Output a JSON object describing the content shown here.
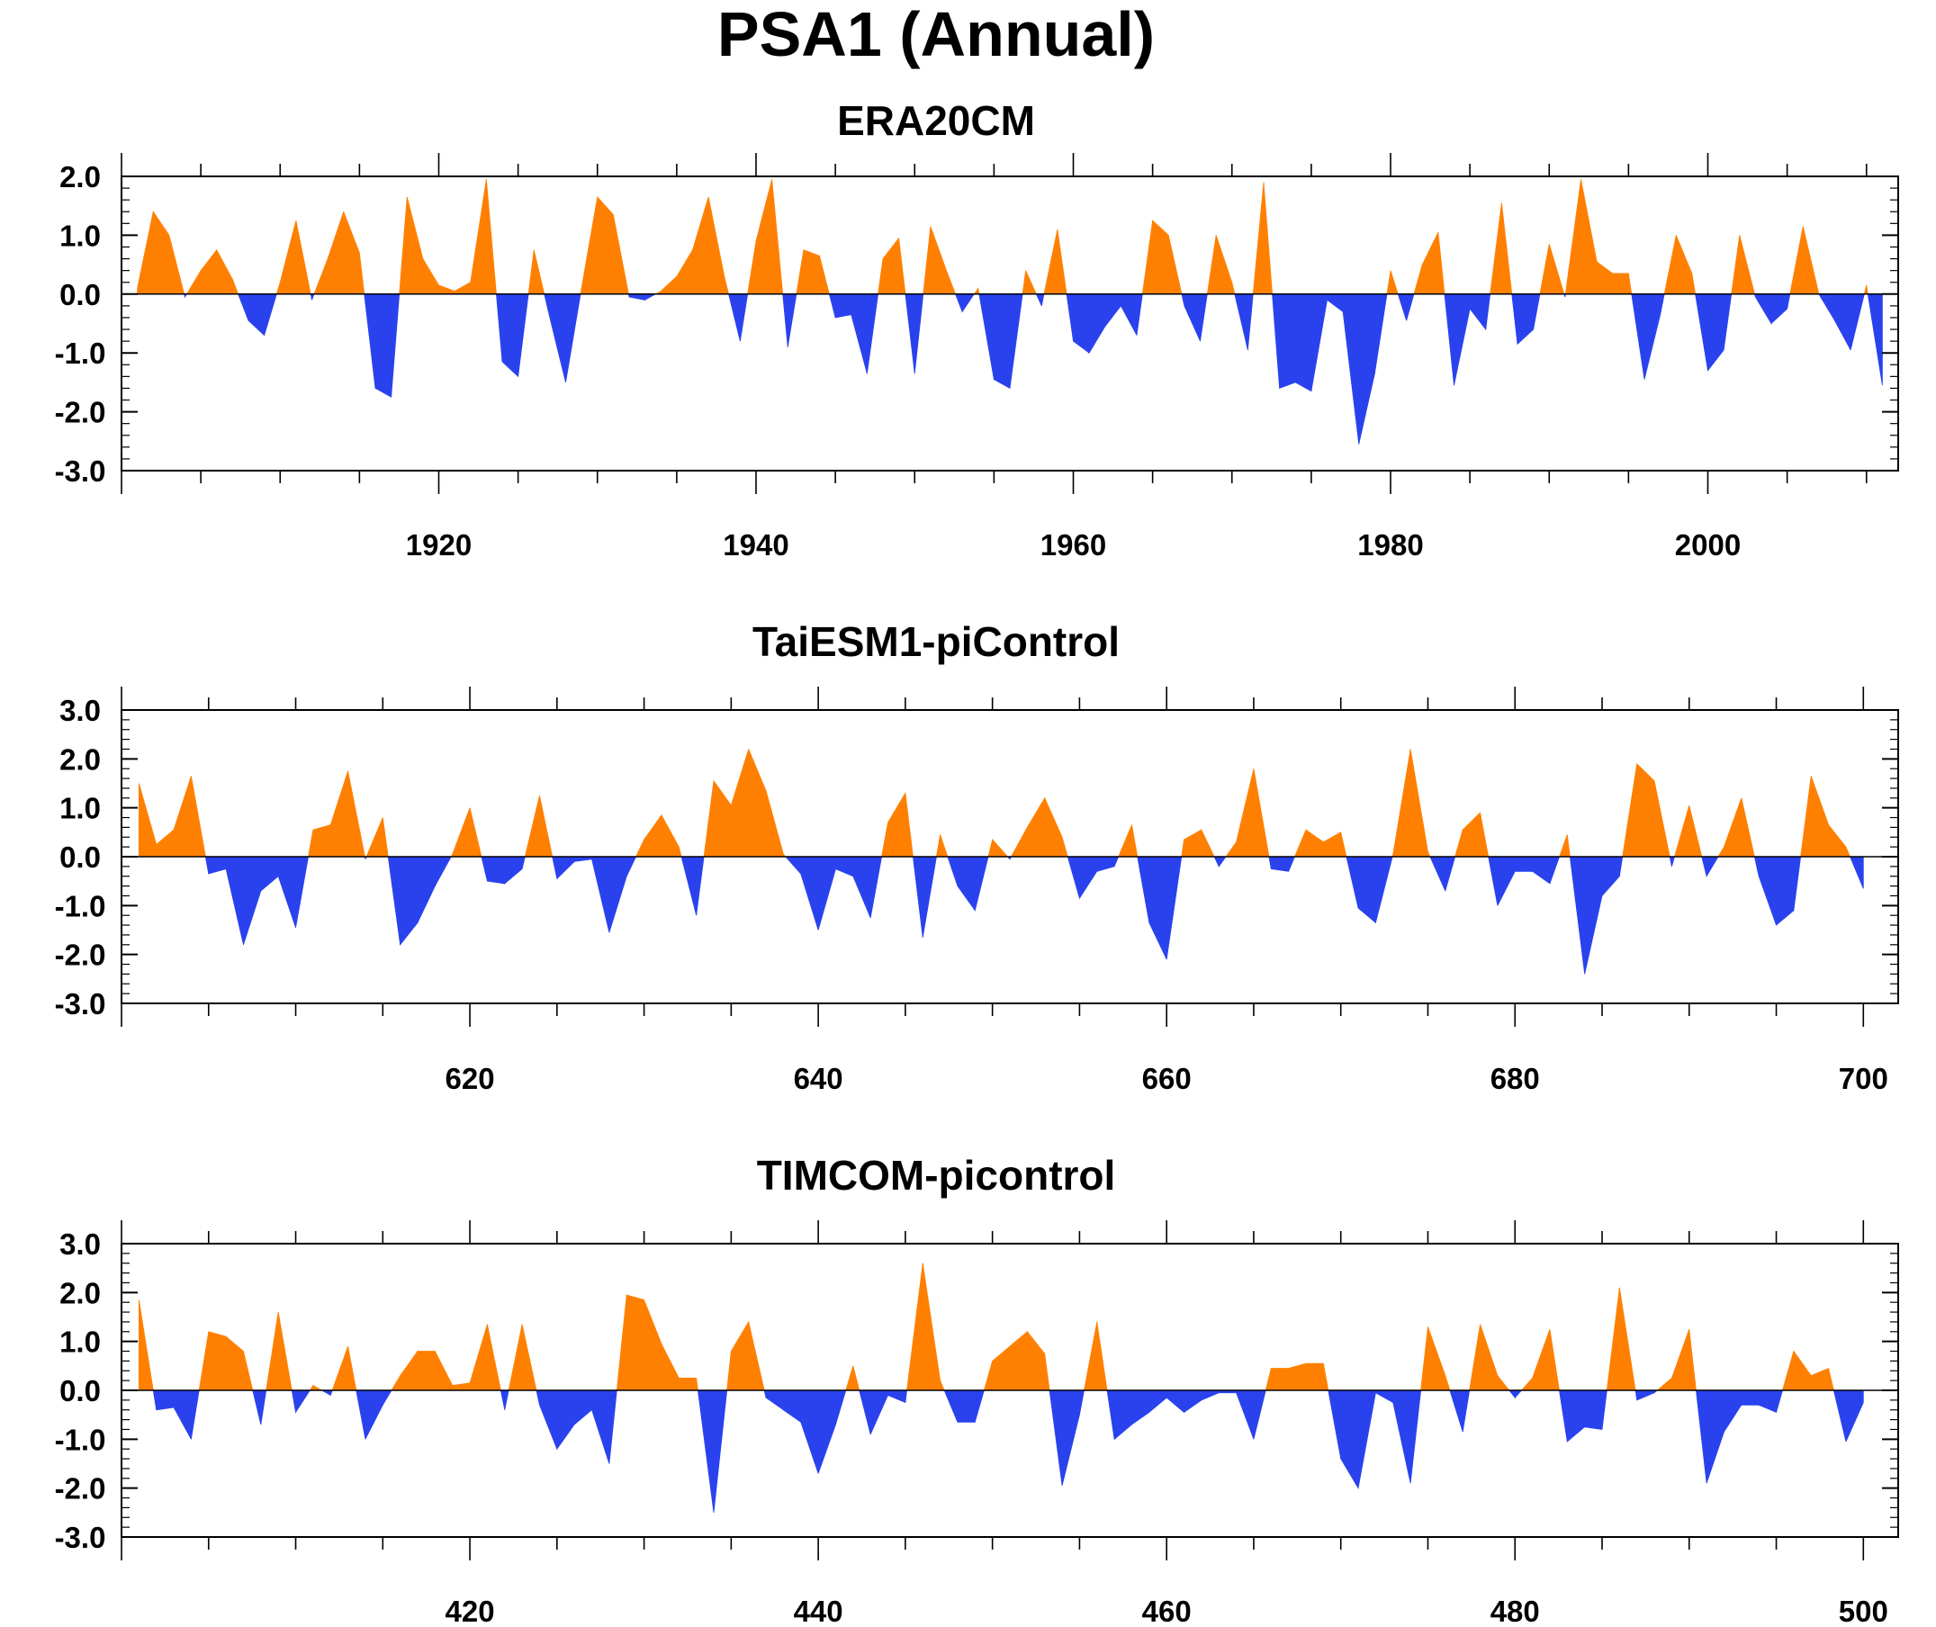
{
  "title": "PSA1 (Annual)",
  "colors": {
    "positive": "#ff8000",
    "negative": "#2a42ee",
    "frame": "#000000"
  },
  "chart_data": [
    {
      "type": "area",
      "title": "ERA20CM",
      "xlabel": "",
      "ylabel": "",
      "xlim": [
        1900,
        2012
      ],
      "ylim": [
        -3,
        2
      ],
      "yticks": [
        "2.0",
        "1.0",
        "0.0",
        "-1.0",
        "-2.0",
        "-3.0"
      ],
      "xticks": [
        "1920",
        "1940",
        "1960",
        "1980",
        "2000"
      ],
      "x": [
        1901,
        1902,
        1903,
        1904,
        1905,
        1906,
        1907,
        1908,
        1909,
        1910,
        1911,
        1912,
        1913,
        1914,
        1915,
        1916,
        1917,
        1918,
        1919,
        1920,
        1921,
        1922,
        1923,
        1924,
        1925,
        1926,
        1927,
        1928,
        1929,
        1930,
        1931,
        1932,
        1933,
        1934,
        1935,
        1936,
        1937,
        1938,
        1939,
        1940,
        1941,
        1942,
        1943,
        1944,
        1945,
        1946,
        1947,
        1948,
        1949,
        1950,
        1951,
        1952,
        1953,
        1954,
        1955,
        1956,
        1957,
        1958,
        1959,
        1960,
        1961,
        1962,
        1963,
        1964,
        1965,
        1966,
        1967,
        1968,
        1969,
        1970,
        1971,
        1972,
        1973,
        1974,
        1975,
        1976,
        1977,
        1978,
        1979,
        1980,
        1981,
        1982,
        1983,
        1984,
        1985,
        1986,
        1987,
        1988,
        1989,
        1990,
        1991,
        1992,
        1993,
        1994,
        1995,
        1996,
        1997,
        1998,
        1999,
        2000,
        2001,
        2002,
        2003,
        2004,
        2005,
        2006,
        2007,
        2008,
        2009,
        2010,
        2011
      ],
      "values": [
        0.1,
        1.4,
        1.0,
        -0.05,
        0.4,
        0.75,
        0.25,
        -0.45,
        -0.7,
        0.2,
        1.25,
        -0.1,
        0.6,
        1.4,
        0.7,
        -1.6,
        -1.75,
        1.65,
        0.6,
        0.15,
        0.05,
        0.2,
        1.95,
        -1.15,
        -1.4,
        0.75,
        -0.4,
        -1.5,
        0.1,
        1.65,
        1.35,
        -0.05,
        -0.1,
        0.05,
        0.3,
        0.75,
        1.65,
        0.3,
        -0.8,
        0.9,
        1.95,
        -0.9,
        0.75,
        0.65,
        -0.4,
        -0.35,
        -1.35,
        0.6,
        0.95,
        -1.35,
        1.15,
        0.4,
        -0.3,
        0.1,
        -1.45,
        -1.6,
        0.4,
        -0.2,
        1.1,
        -0.8,
        -1.0,
        -0.55,
        -0.2,
        -0.7,
        1.25,
        1.0,
        -0.2,
        -0.8,
        1.0,
        0.2,
        -0.95,
        1.9,
        -1.6,
        -1.5,
        -1.65,
        -0.1,
        -0.3,
        -2.55,
        -1.35,
        0.4,
        -0.45,
        0.5,
        1.05,
        -1.55,
        -0.25,
        -0.6,
        1.55,
        -0.85,
        -0.6,
        0.85,
        -0.05,
        1.95,
        0.55,
        0.35,
        0.35,
        -1.45,
        -0.35,
        1.0,
        0.35,
        -1.3,
        -0.95,
        1.0,
        -0.05,
        -0.5,
        -0.25,
        1.15,
        0.0,
        -0.45,
        -0.95,
        0.15,
        -1.55
      ]
    },
    {
      "type": "area",
      "title": "TaiESM1-piControl",
      "xlabel": "",
      "ylabel": "",
      "xlim": [
        600,
        702
      ],
      "ylim": [
        -3,
        3
      ],
      "yticks": [
        "3.0",
        "2.0",
        "1.0",
        "0.0",
        "-1.0",
        "-2.0",
        "-3.0"
      ],
      "xticks": [
        "620",
        "640",
        "660",
        "680",
        "700"
      ],
      "x": [
        601,
        602,
        603,
        604,
        605,
        606,
        607,
        608,
        609,
        610,
        611,
        612,
        613,
        614,
        615,
        616,
        617,
        618,
        619,
        620,
        621,
        622,
        623,
        624,
        625,
        626,
        627,
        628,
        629,
        630,
        631,
        632,
        633,
        634,
        635,
        636,
        637,
        638,
        639,
        640,
        641,
        642,
        643,
        644,
        645,
        646,
        647,
        648,
        649,
        650,
        651,
        652,
        653,
        654,
        655,
        656,
        657,
        658,
        659,
        660,
        661,
        662,
        663,
        664,
        665,
        666,
        667,
        668,
        669,
        670,
        671,
        672,
        673,
        674,
        675,
        676,
        677,
        678,
        679,
        680,
        681,
        682,
        683,
        684,
        685,
        686,
        687,
        688,
        689,
        690,
        691,
        692,
        693,
        694,
        695,
        696,
        697,
        698,
        699,
        700
      ],
      "values": [
        1.5,
        0.25,
        0.55,
        1.65,
        -0.35,
        -0.25,
        -1.8,
        -0.7,
        -0.4,
        -1.45,
        0.55,
        0.65,
        1.75,
        -0.05,
        0.8,
        -1.8,
        -1.35,
        -0.6,
        0.05,
        1.0,
        -0.5,
        -0.55,
        -0.25,
        1.25,
        -0.45,
        -0.1,
        -0.05,
        -1.55,
        -0.4,
        0.35,
        0.85,
        0.2,
        -1.2,
        1.55,
        1.05,
        2.2,
        1.35,
        0.05,
        -0.35,
        -1.5,
        -0.25,
        -0.4,
        -1.25,
        0.7,
        1.3,
        -1.65,
        0.45,
        -0.6,
        -1.1,
        0.35,
        -0.05,
        0.6,
        1.2,
        0.4,
        -0.85,
        -0.3,
        -0.2,
        0.65,
        -1.35,
        -2.1,
        0.35,
        0.55,
        -0.2,
        0.3,
        1.8,
        -0.25,
        -0.3,
        0.55,
        0.3,
        0.5,
        -1.05,
        -1.35,
        0.05,
        2.2,
        0.1,
        -0.7,
        0.55,
        0.9,
        -1.0,
        -0.3,
        -0.3,
        -0.55,
        0.45,
        -2.4,
        -0.8,
        -0.4,
        1.9,
        1.55,
        -0.2,
        1.05,
        -0.4,
        0.2,
        1.2,
        -0.4,
        -1.4,
        -1.1,
        1.65,
        0.65,
        0.2,
        -0.65
      ]
    },
    {
      "type": "area",
      "title": "TIMCOM-picontrol",
      "xlabel": "",
      "ylabel": "",
      "xlim": [
        400,
        502
      ],
      "ylim": [
        -3,
        3
      ],
      "yticks": [
        "3.0",
        "2.0",
        "1.0",
        "0.0",
        "-1.0",
        "-2.0",
        "-3.0"
      ],
      "xticks": [
        "420",
        "440",
        "460",
        "480",
        "500"
      ],
      "x": [
        401,
        402,
        403,
        404,
        405,
        406,
        407,
        408,
        409,
        410,
        411,
        412,
        413,
        414,
        415,
        416,
        417,
        418,
        419,
        420,
        421,
        422,
        423,
        424,
        425,
        426,
        427,
        428,
        429,
        430,
        431,
        432,
        433,
        434,
        435,
        436,
        437,
        438,
        439,
        440,
        441,
        442,
        443,
        444,
        445,
        446,
        447,
        448,
        449,
        450,
        451,
        452,
        453,
        454,
        455,
        456,
        457,
        458,
        459,
        460,
        461,
        462,
        463,
        464,
        465,
        466,
        467,
        468,
        469,
        470,
        471,
        472,
        473,
        474,
        475,
        476,
        477,
        478,
        479,
        480,
        481,
        482,
        483,
        484,
        485,
        486,
        487,
        488,
        489,
        490,
        491,
        492,
        493,
        494,
        495,
        496,
        497,
        498,
        499,
        500
      ],
      "values": [
        1.85,
        -0.4,
        -0.35,
        -1.0,
        1.2,
        1.1,
        0.8,
        -0.7,
        1.6,
        -0.45,
        0.1,
        -0.1,
        0.9,
        -1.0,
        -0.3,
        0.3,
        0.8,
        0.8,
        0.1,
        0.15,
        1.35,
        -0.4,
        1.35,
        -0.3,
        -1.2,
        -0.7,
        -0.4,
        -1.5,
        1.95,
        1.85,
        0.95,
        0.25,
        0.25,
        -2.5,
        0.8,
        1.4,
        -0.15,
        -0.4,
        -0.65,
        -1.7,
        -0.7,
        0.5,
        -0.9,
        -0.1,
        -0.25,
        2.6,
        0.2,
        -0.65,
        -0.65,
        0.6,
        0.9,
        1.2,
        0.75,
        -1.95,
        -0.5,
        1.4,
        -1.0,
        -0.7,
        -0.45,
        -0.15,
        -0.45,
        -0.2,
        -0.05,
        -0.05,
        -1.0,
        0.45,
        0.45,
        0.55,
        0.55,
        -1.4,
        -2.0,
        -0.05,
        -0.25,
        -1.9,
        1.3,
        0.3,
        -0.85,
        1.35,
        0.3,
        -0.15,
        0.25,
        1.25,
        -1.05,
        -0.75,
        -0.8,
        2.1,
        -0.2,
        -0.05,
        0.25,
        1.25,
        -1.9,
        -0.85,
        -0.3,
        -0.3,
        -0.45,
        0.8,
        0.3,
        0.45,
        -1.05,
        -0.25
      ]
    }
  ]
}
